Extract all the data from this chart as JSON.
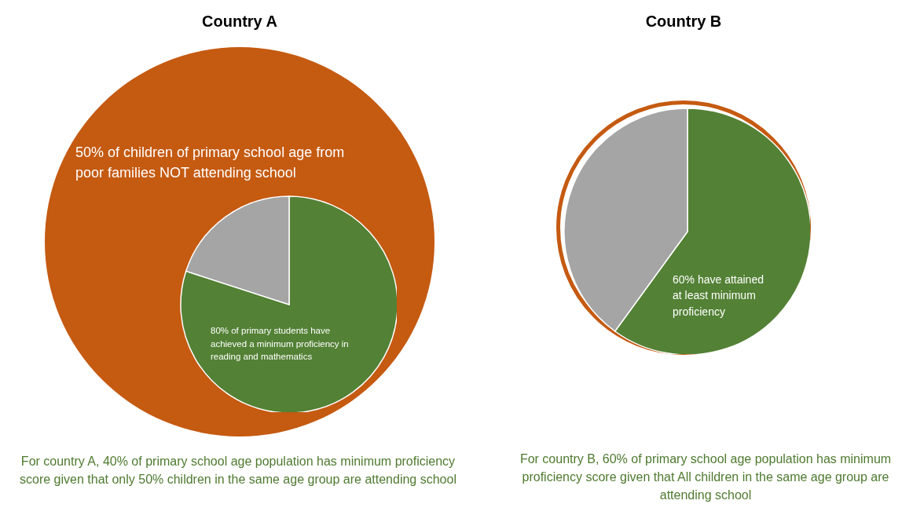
{
  "chart_data": [
    {
      "type": "pie",
      "title": "Country A",
      "values": [
        80,
        20
      ],
      "colors": [
        "#538135",
        "#a5a5a5"
      ],
      "annotations": [
        "50% of children of primary school age from poor families NOT attending school",
        "80% of primary students have achieved a minimum proficiency in reading and mathematics",
        "For country A, 40% of primary school age population has minimum proficiency score given that only 50% children in the same age group are attending school"
      ]
    },
    {
      "type": "pie",
      "title": "Country B",
      "values": [
        60,
        40
      ],
      "colors": [
        "#538135",
        "#a5a5a5"
      ],
      "annotations": [
        "60% have attained at least minimum proficiency",
        "For country B, 60% of primary school age population has minimum proficiency score given that All children in the same age group are attending school"
      ]
    }
  ]
}
